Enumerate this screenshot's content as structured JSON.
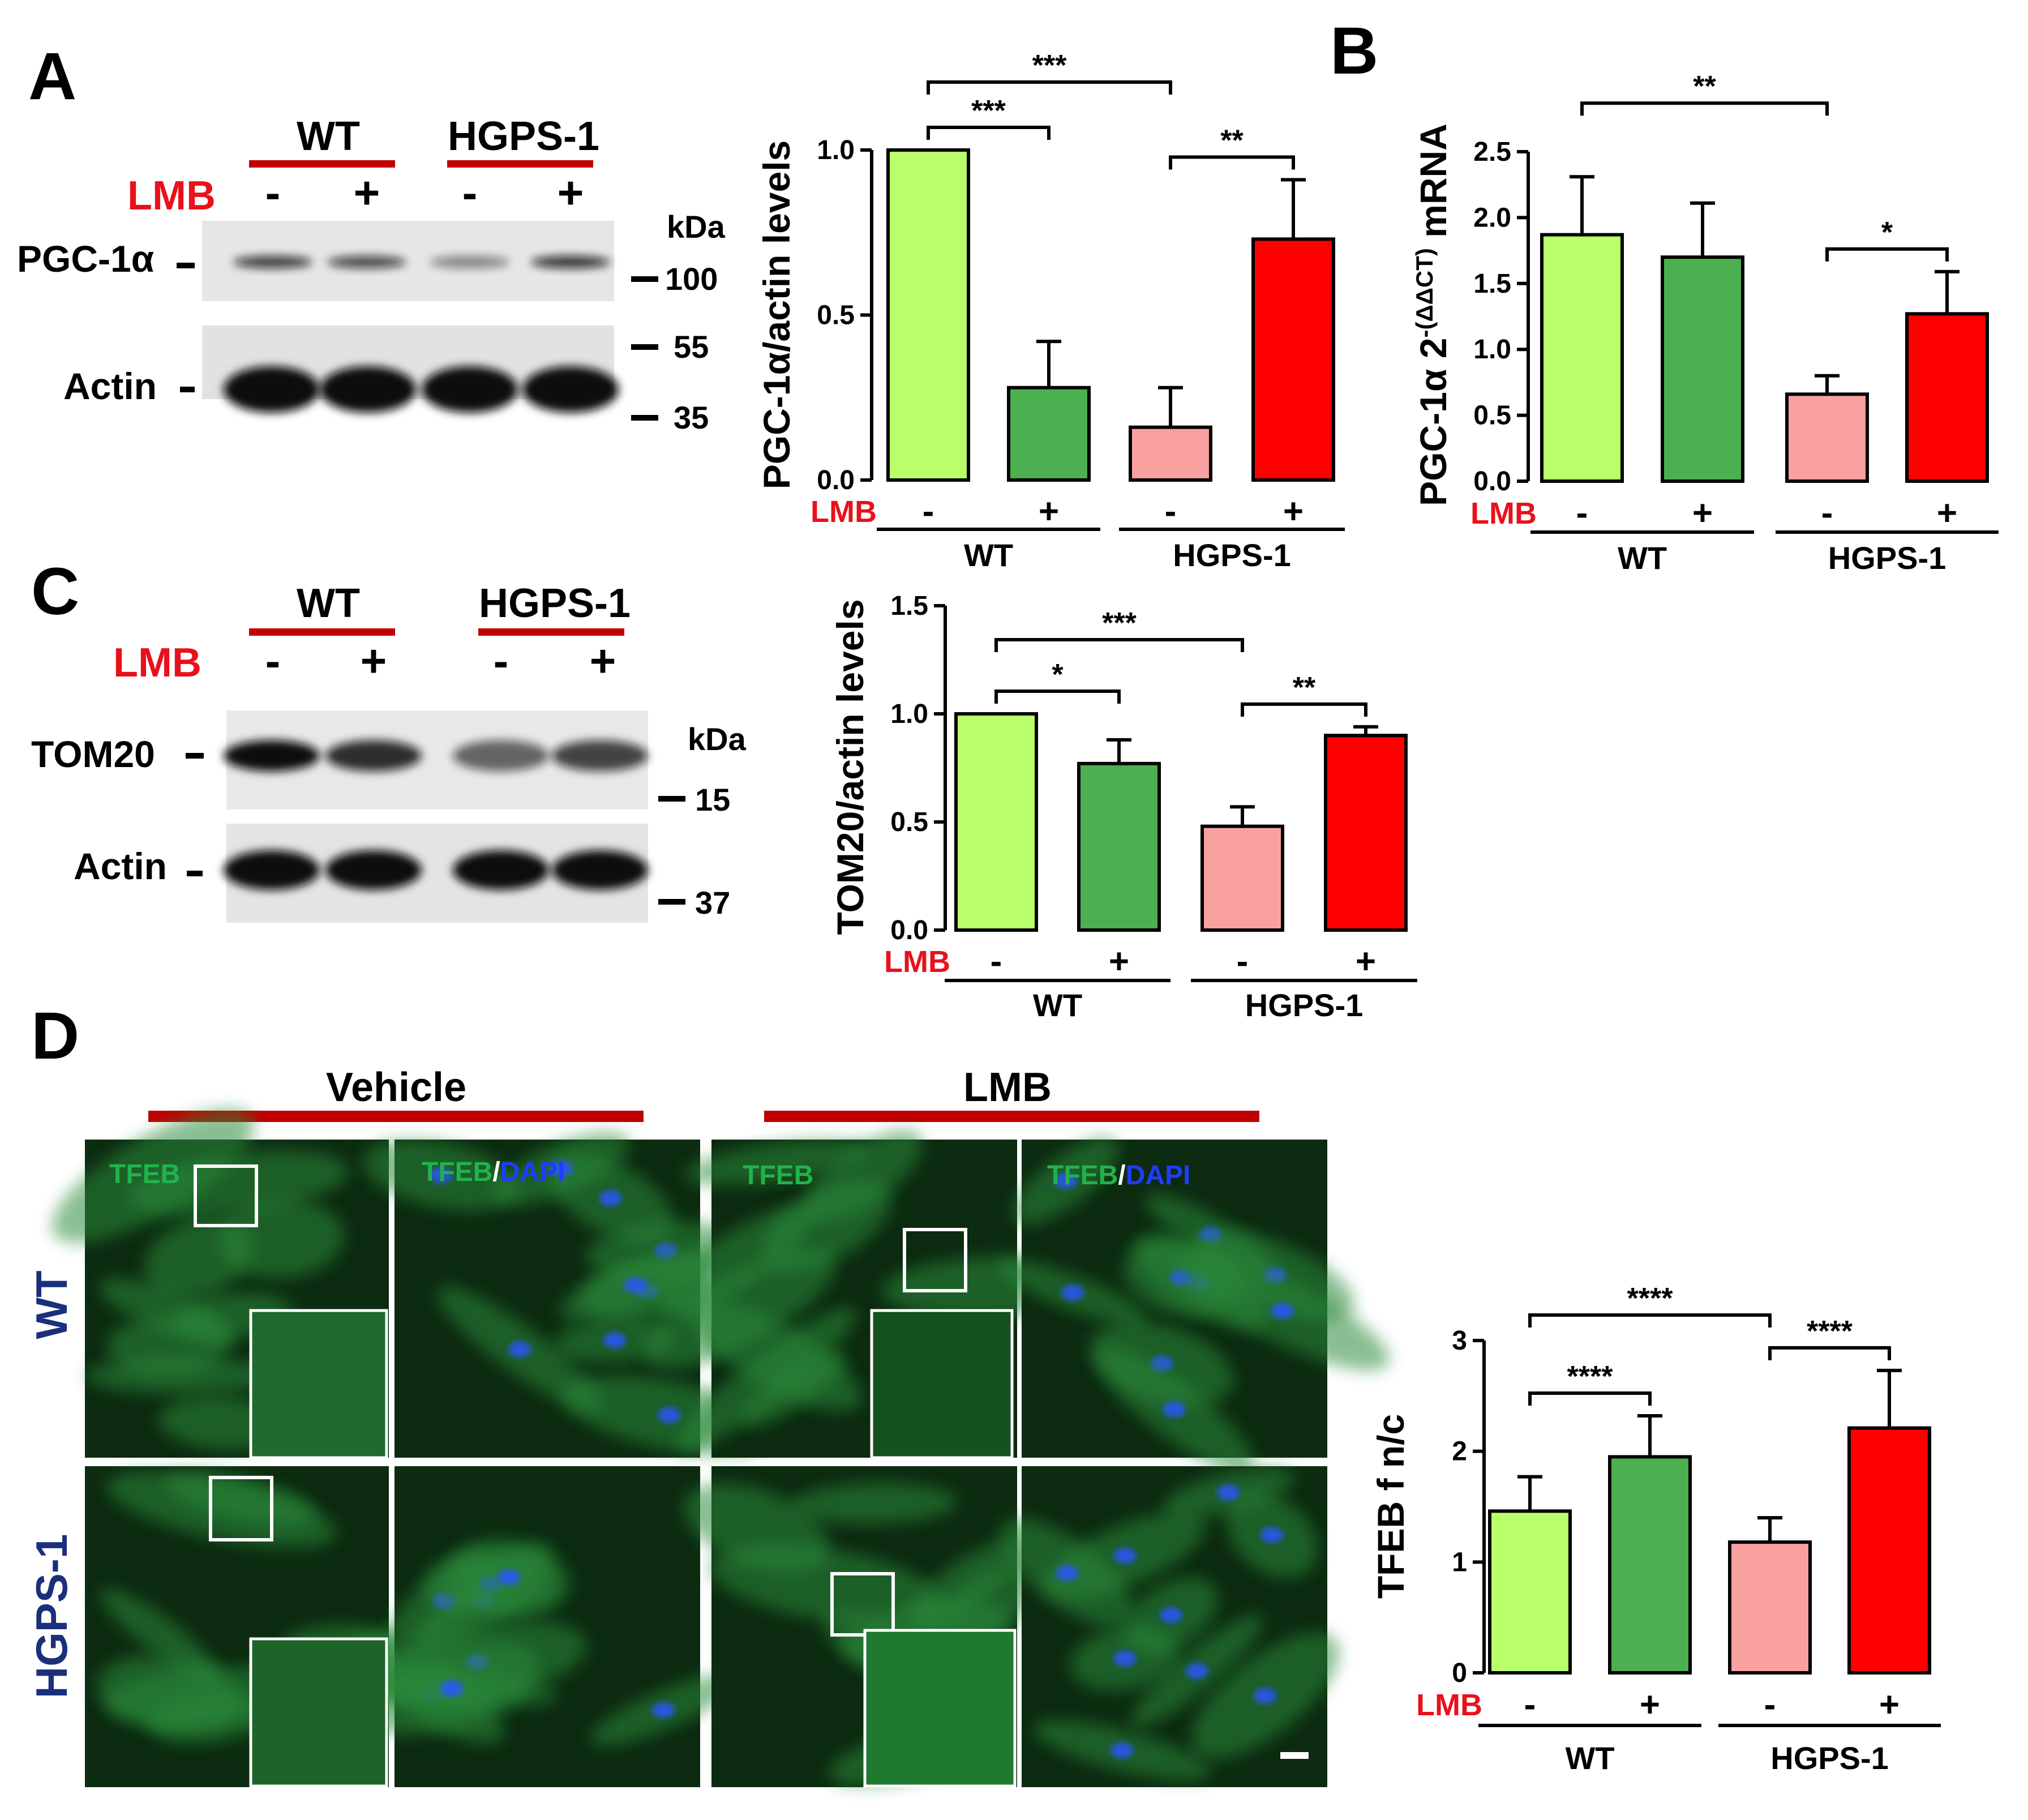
{
  "panels": {
    "A": "A",
    "B": "B",
    "C": "C",
    "D": "D"
  },
  "blots": [
    {
      "groups": [
        "WT",
        "HGPS-1"
      ],
      "treatment_label": "LMB",
      "signs": [
        "-",
        "+",
        "-",
        "+"
      ],
      "bands": [
        {
          "label": "PGC-1α",
          "intensity": [
            0.78,
            0.72,
            0.45,
            0.82
          ]
        },
        {
          "label": "Actin",
          "intensity": [
            1.0,
            1.0,
            1.0,
            1.0
          ]
        }
      ],
      "kda_label": "kDa",
      "markers": [
        "100",
        "55",
        "35"
      ]
    },
    {
      "groups": [
        "WT",
        "HGPS-1"
      ],
      "treatment_label": "LMB",
      "signs": [
        "-",
        "+",
        "-",
        "+"
      ],
      "bands": [
        {
          "label": "TOM20",
          "intensity": [
            1.0,
            0.85,
            0.6,
            0.75
          ]
        },
        {
          "label": "Actin",
          "intensity": [
            1.0,
            1.0,
            1.0,
            1.0
          ]
        }
      ],
      "kda_label": "kDa",
      "markers": [
        "15",
        "37"
      ]
    }
  ],
  "micro": {
    "columns": [
      "Vehicle",
      "LMB"
    ],
    "rows": [
      "WT",
      "HGPS-1"
    ],
    "stain_tfeb": "TFEB",
    "stain_slash": "/",
    "stain_dapi": "DAPI",
    "colors": {
      "tfeb": "#22b24c",
      "dapi": "#1f3cff",
      "row_label": "#1c2f7c",
      "bar": "#c00000"
    }
  },
  "chart_data": [
    {
      "type": "bar",
      "ylabel": "PGC-1α/actin levels",
      "ylim": [
        0,
        1.0
      ],
      "yticks": [
        "0.0",
        "0.5",
        "1.0"
      ],
      "treatment_label": "LMB",
      "categories": [
        "-",
        "+",
        "-",
        "+"
      ],
      "groups": [
        "WT",
        "HGPS-1"
      ],
      "values": [
        1.0,
        0.28,
        0.16,
        0.73
      ],
      "errors": [
        0,
        0.14,
        0.12,
        0.18
      ],
      "significance": [
        {
          "from": 0,
          "to": 1,
          "label": "***"
        },
        {
          "from": 0,
          "to": 2,
          "label": "***"
        },
        {
          "from": 2,
          "to": 3,
          "label": "**"
        }
      ]
    },
    {
      "type": "bar",
      "ylabel": "PGC-1α 2",
      "ylabel_sup": "-(ΔΔCT)",
      "ylabel_tail": " mRNA",
      "ylim": [
        0,
        2.5
      ],
      "yticks": [
        "0.0",
        "0.5",
        "1.0",
        "1.5",
        "2.0",
        "2.5"
      ],
      "treatment_label": "LMB",
      "categories": [
        "-",
        "+",
        "-",
        "+"
      ],
      "groups": [
        "WT",
        "HGPS-1"
      ],
      "values": [
        1.87,
        1.7,
        0.66,
        1.27
      ],
      "errors": [
        0.44,
        0.41,
        0.14,
        0.32
      ],
      "significance": [
        {
          "from": 0,
          "to": 2,
          "label": "**"
        },
        {
          "from": 2,
          "to": 3,
          "label": "*"
        }
      ]
    },
    {
      "type": "bar",
      "ylabel": "TOM20/actin levels",
      "ylim": [
        0,
        1.5
      ],
      "yticks": [
        "0.0",
        "0.5",
        "1.0",
        "1.5"
      ],
      "treatment_label": "LMB",
      "categories": [
        "-",
        "+",
        "-",
        "+"
      ],
      "groups": [
        "WT",
        "HGPS-1"
      ],
      "values": [
        1.0,
        0.77,
        0.48,
        0.9
      ],
      "errors": [
        0,
        0.11,
        0.09,
        0.04
      ],
      "significance": [
        {
          "from": 0,
          "to": 1,
          "label": "*"
        },
        {
          "from": 0,
          "to": 2,
          "label": "***"
        },
        {
          "from": 2,
          "to": 3,
          "label": "**"
        }
      ]
    },
    {
      "type": "bar",
      "ylabel": "TFEB f n/c",
      "ylim": [
        0,
        3
      ],
      "yticks": [
        "0",
        "1",
        "2",
        "3"
      ],
      "treatment_label": "LMB",
      "categories": [
        "-",
        "+",
        "-",
        "+"
      ],
      "groups": [
        "WT",
        "HGPS-1"
      ],
      "values": [
        1.46,
        1.95,
        1.18,
        2.21
      ],
      "errors": [
        0.31,
        0.37,
        0.22,
        0.52
      ],
      "significance": [
        {
          "from": 0,
          "to": 1,
          "label": "****"
        },
        {
          "from": 0,
          "to": 2,
          "label": "****"
        },
        {
          "from": 2,
          "to": 3,
          "label": "****"
        }
      ]
    }
  ],
  "colors": {
    "bars": [
      "#b9ff6b",
      "#4caf50",
      "#f9a1a1",
      "#ff0000"
    ],
    "treatment": "#e8111b"
  }
}
